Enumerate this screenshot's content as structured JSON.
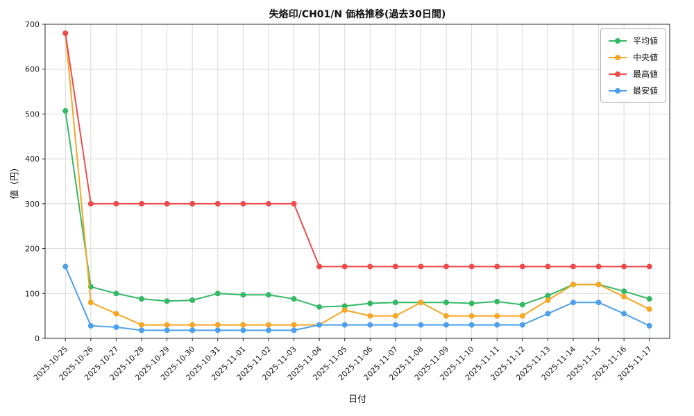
{
  "chart_data": {
    "type": "line",
    "title": "失烙印/CH01/N 価格推移(過去30日間)",
    "xlabel": "日付",
    "ylabel": "値（円）",
    "ylim": [
      0,
      700
    ],
    "yticks": [
      0,
      100,
      200,
      300,
      400,
      500,
      600,
      700
    ],
    "grid": true,
    "legend_position": "upper right",
    "categories": [
      "2025-10-25",
      "2025-10-26",
      "2025-10-27",
      "2025-10-28",
      "2025-10-29",
      "2025-10-30",
      "2025-10-31",
      "2025-11-01",
      "2025-11-02",
      "2025-11-03",
      "2025-11-04",
      "2025-11-05",
      "2025-11-06",
      "2025-11-07",
      "2025-11-08",
      "2025-11-09",
      "2025-11-10",
      "2025-11-11",
      "2025-11-12",
      "2025-11-13",
      "2025-11-14",
      "2025-11-15",
      "2025-11-16",
      "2025-11-17"
    ],
    "series": [
      {
        "name": "平均値",
        "color": "#33b864",
        "values": [
          507,
          115,
          100,
          88,
          83,
          85,
          100,
          97,
          97,
          88,
          70,
          72,
          78,
          80,
          80,
          80,
          78,
          82,
          75,
          95,
          120,
          120,
          105,
          88
        ]
      },
      {
        "name": "中央値",
        "color": "#f6a623",
        "values": [
          680,
          80,
          55,
          30,
          30,
          30,
          30,
          30,
          30,
          30,
          30,
          63,
          50,
          50,
          80,
          50,
          50,
          50,
          50,
          85,
          120,
          120,
          93,
          65
        ]
      },
      {
        "name": "最高値",
        "color": "#ef4b4b",
        "values": [
          680,
          300,
          300,
          300,
          300,
          300,
          300,
          300,
          300,
          300,
          160,
          160,
          160,
          160,
          160,
          160,
          160,
          160,
          160,
          160,
          160,
          160,
          160,
          160
        ]
      },
      {
        "name": "最安値",
        "color": "#4b9fec",
        "values": [
          160,
          28,
          25,
          18,
          18,
          18,
          18,
          18,
          18,
          18,
          30,
          30,
          30,
          30,
          30,
          30,
          30,
          30,
          30,
          55,
          80,
          80,
          55,
          28
        ]
      }
    ]
  }
}
